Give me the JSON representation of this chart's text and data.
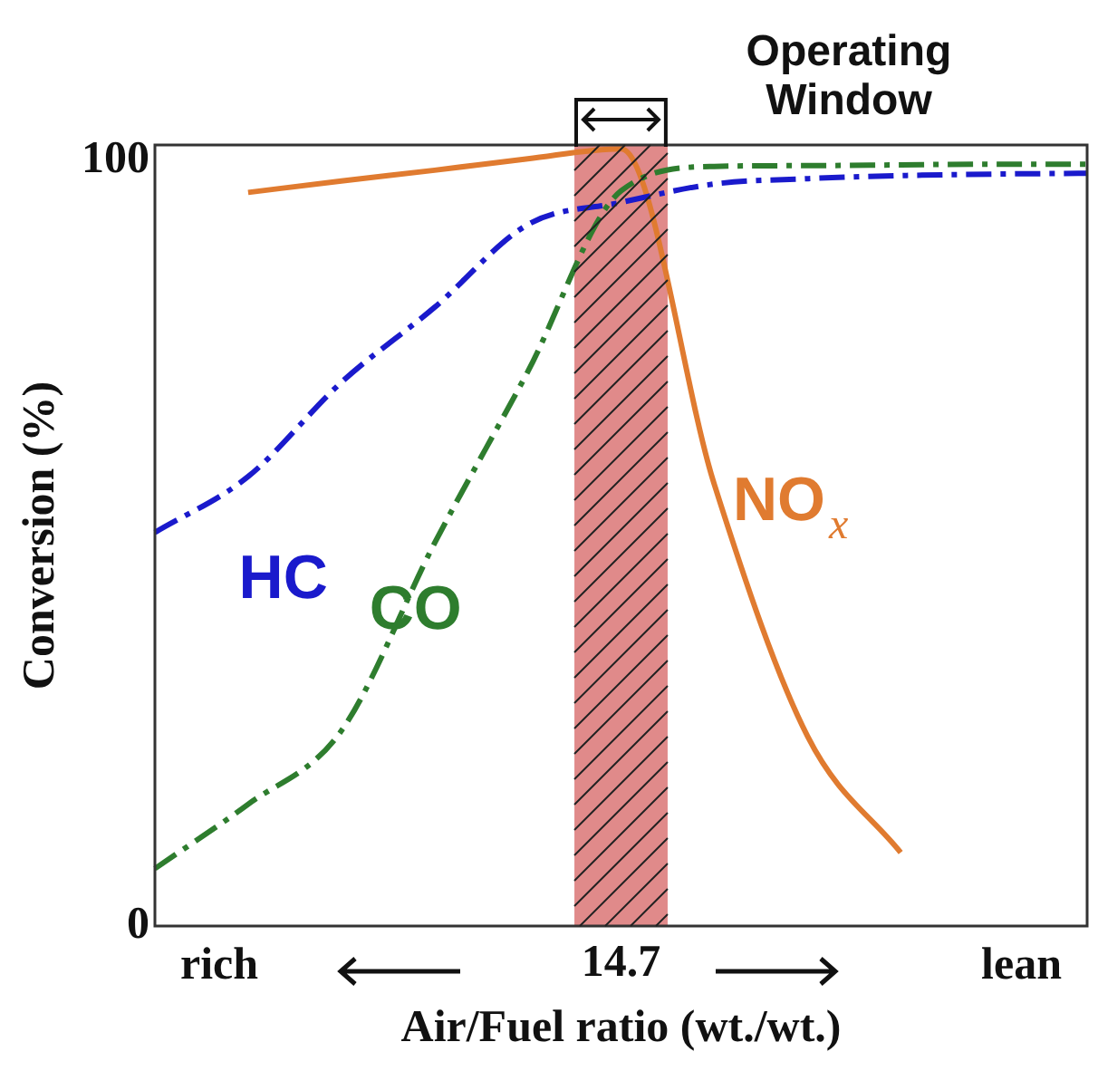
{
  "chart_data": {
    "type": "line",
    "xlabel": "Air/Fuel ratio (wt./wt.)",
    "ylabel": "Conversion (%)",
    "categories": [
      null,
      null,
      null,
      null,
      null,
      "14.7",
      null,
      null,
      null,
      null,
      null
    ],
    "ylim": [
      0,
      102
    ],
    "yticks": [
      0,
      100
    ],
    "grid": false,
    "legend": false,
    "series": [
      {
        "name": "HC",
        "color": "#1a1acc",
        "line_style": "dashed",
        "values": [
          51.4,
          58.7,
          71,
          80.8,
          91.6,
          94.5,
          96.9,
          97.6,
          98,
          98.2,
          98.3
        ]
      },
      {
        "name": "CO",
        "color": "#2e7d2e",
        "line_style": "dashed",
        "values": [
          7.5,
          15.9,
          25.5,
          50,
          72.4,
          96,
          99.2,
          99.3,
          99.4,
          99.5,
          99.5
        ]
      },
      {
        "name": "NO$_{x}$",
        "color": "#e07b30",
        "line_style": "solid",
        "values": [
          null,
          95.8,
          97.3,
          98.7,
          100.2,
          101.5,
          57.7,
          24.8,
          9.6,
          null,
          null
        ]
      }
    ],
    "bands": [
      {
        "axis": "x",
        "from": "14.7",
        "to": "14.7",
        "label": "Operating Window",
        "color": "#e08a8a"
      }
    ],
    "annotations": [
      "rich",
      "lean"
    ]
  }
}
